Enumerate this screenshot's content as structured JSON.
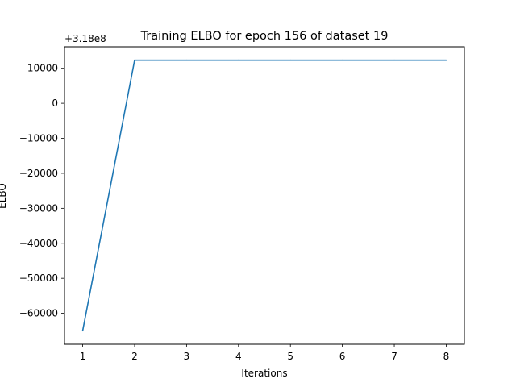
{
  "chart_data": {
    "type": "line",
    "title": "Training ELBO for epoch 156 of dataset 19",
    "xlabel": "Iterations",
    "ylabel": "ELBO",
    "offset_label": "+3.18e8",
    "x": [
      1,
      2,
      3,
      4,
      5,
      6,
      7,
      8
    ],
    "series": [
      {
        "values": [
          317935000,
          318012300,
          318012300,
          318012300,
          318012300,
          318012300,
          318012300,
          318012300
        ]
      }
    ],
    "xlim": [
      0.65,
      8.35
    ],
    "ylim": [
      317931150,
      318016150
    ],
    "x_ticks": [
      1,
      2,
      3,
      4,
      5,
      6,
      7,
      8
    ],
    "y_ticks": [
      -60000,
      -50000,
      -40000,
      -30000,
      -20000,
      -10000,
      0,
      10000
    ],
    "grid": false,
    "line_color": "#1f77b4"
  }
}
